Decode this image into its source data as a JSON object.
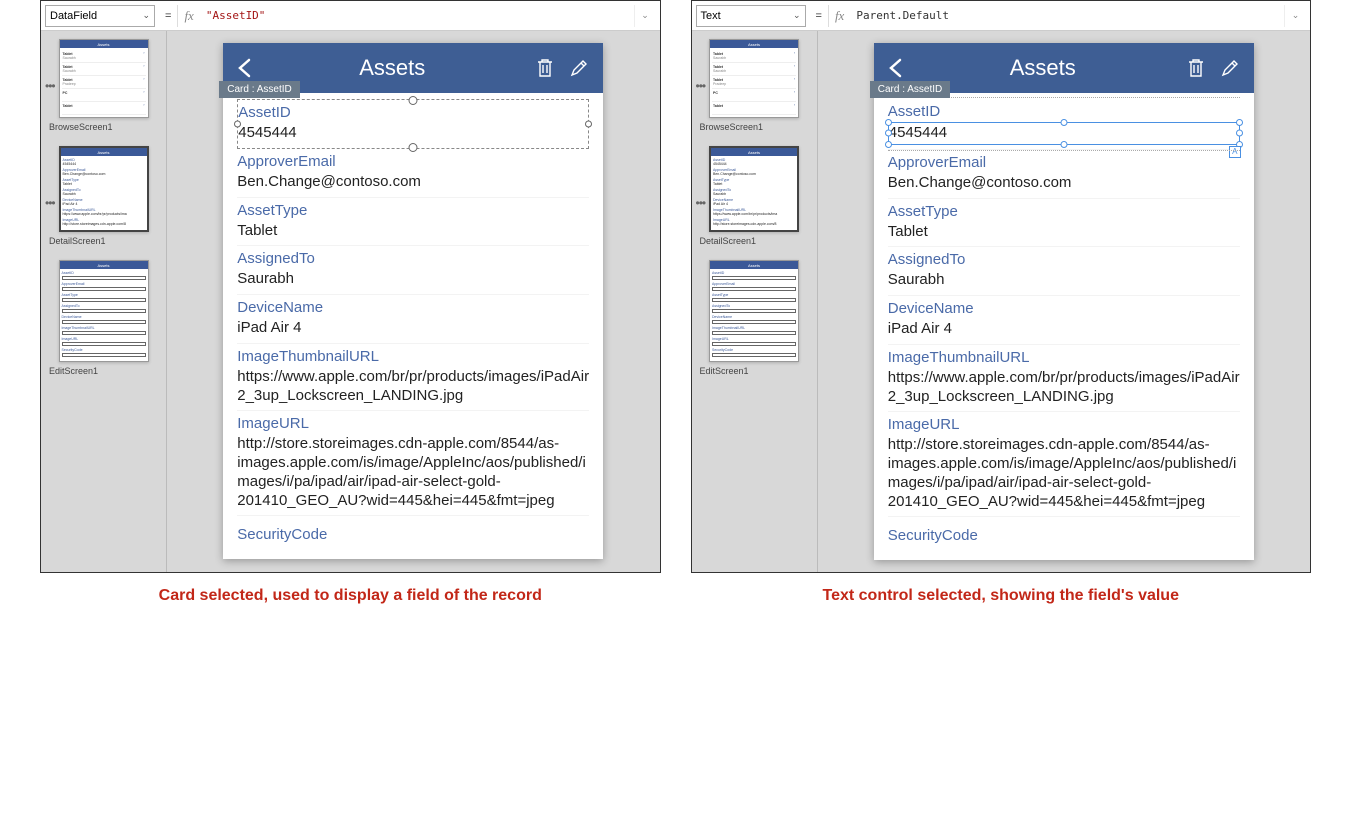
{
  "captions": {
    "left": "Card selected, used to display a field of the record",
    "right": "Text control selected, showing the field's value"
  },
  "panel1": {
    "property": "DataField",
    "formula": "\"AssetID\"",
    "card_tag": "Card : AssetID"
  },
  "panel2": {
    "property": "Text",
    "formula": "Parent.Default",
    "card_tag": "Card : AssetID"
  },
  "screens": {
    "browse": "BrowseScreen1",
    "detail": "DetailScreen1",
    "edit": "EditScreen1",
    "title": "Assets"
  },
  "record": {
    "fields": [
      {
        "label": "AssetID",
        "value": "4545444"
      },
      {
        "label": "ApproverEmail",
        "value": "Ben.Change@contoso.com"
      },
      {
        "label": "AssetType",
        "value": "Tablet"
      },
      {
        "label": "AssignedTo",
        "value": "Saurabh"
      },
      {
        "label": "DeviceName",
        "value": "iPad Air 4"
      },
      {
        "label": "ImageThumbnailURL",
        "value": "https://www.apple.com/br/pr/products/images/iPadAir2_3up_Lockscreen_LANDING.jpg"
      },
      {
        "label": "ImageURL",
        "value": "http://store.storeimages.cdn-apple.com/8544/as-images.apple.com/is/image/AppleInc/aos/published/images/i/pa/ipad/air/ipad-air-select-gold-201410_GEO_AU?wid=445&hei=445&fmt=jpeg"
      },
      {
        "label": "SecurityCode",
        "value": ""
      }
    ]
  },
  "thumb_list": [
    {
      "t": "Tablet",
      "s": "Saurabh"
    },
    {
      "t": "Tablet",
      "s": "Saurabh"
    },
    {
      "t": "Tablet",
      "s": "Pradeep"
    },
    {
      "t": "PC",
      "s": ""
    },
    {
      "t": "Tablet",
      "s": ""
    }
  ],
  "colors": {
    "header_bg": "#3e5e94",
    "label_color": "#4a6aa8",
    "caption_color": "#c22718",
    "canvas_bg": "#d8d8d8",
    "selection_blue": "#4a90e2",
    "tag_bg": "#6a7a8a"
  }
}
